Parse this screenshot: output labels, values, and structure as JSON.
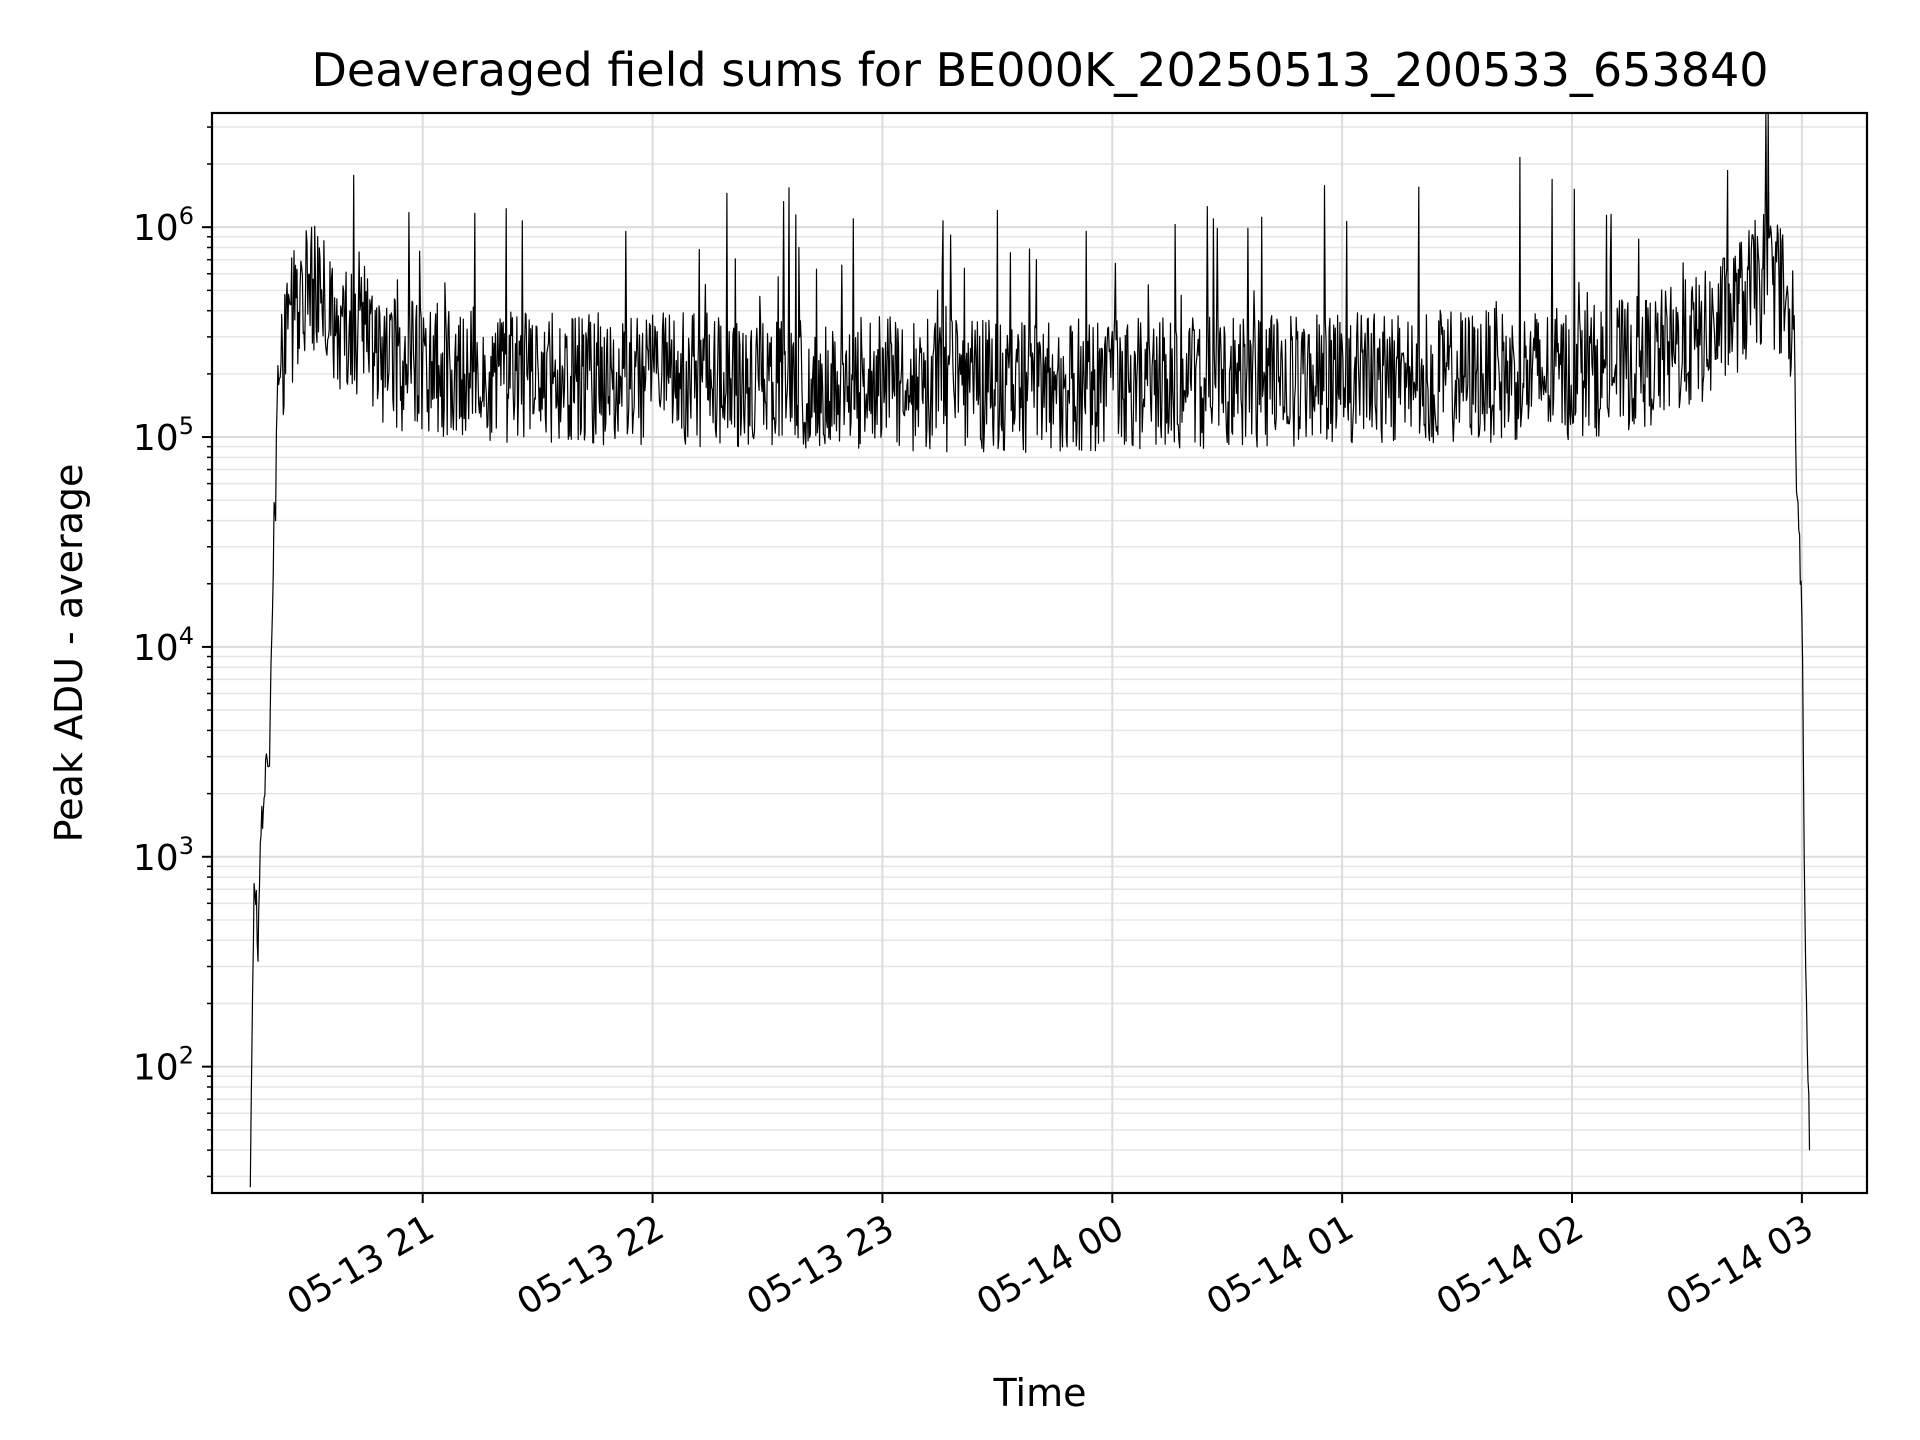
{
  "chart_data": {
    "type": "line",
    "title": "Deaveraged field sums for BE000K_20250513_200533_653840",
    "xlabel": "Time",
    "ylabel": "Peak ADU - average",
    "yscale": "log",
    "ylim": [
      25,
      3500000
    ],
    "xlim": [
      "2025-05-13 20:05",
      "2025-05-14 03:17"
    ],
    "grid": true,
    "line_color": "#000000",
    "x_ticks": [
      {
        "label": "05-13 21",
        "time": "2025-05-13 21:00"
      },
      {
        "label": "05-13 22",
        "time": "2025-05-13 22:00"
      },
      {
        "label": "05-13 23",
        "time": "2025-05-13 23:00"
      },
      {
        "label": "05-14 00",
        "time": "2025-05-14 00:00"
      },
      {
        "label": "05-14 01",
        "time": "2025-05-14 01:00"
      },
      {
        "label": "05-14 02",
        "time": "2025-05-14 02:00"
      },
      {
        "label": "05-14 03",
        "time": "2025-05-14 03:00"
      }
    ],
    "y_ticks": [
      {
        "base": "10",
        "exp": "2",
        "value": 100
      },
      {
        "base": "10",
        "exp": "3",
        "value": 1000
      },
      {
        "base": "10",
        "exp": "4",
        "value": 10000
      },
      {
        "base": "10",
        "exp": "5",
        "value": 100000
      },
      {
        "base": "10",
        "exp": "6",
        "value": 1000000
      }
    ],
    "series": [
      {
        "x": [
          "2025-05-13 20:15",
          "2025-05-13 20:16",
          "2025-05-13 20:17",
          "2025-05-13 20:18",
          "2025-05-13 20:19",
          "2025-05-13 20:20",
          "2025-05-13 20:21",
          "2025-05-13 20:22",
          "2025-05-13 20:24",
          "2025-05-13 20:26",
          "2025-05-13 20:28",
          "2025-05-13 20:30",
          "2025-05-13 20:32",
          "2025-05-13 20:35",
          "2025-05-13 20:40",
          "2025-05-13 20:45",
          "2025-05-13 20:50",
          "2025-05-13 20:55",
          "2025-05-13 21:00",
          "2025-05-13 21:15",
          "2025-05-13 21:30",
          "2025-05-13 22:00",
          "2025-05-13 22:30",
          "2025-05-13 23:00",
          "2025-05-13 23:30",
          "2025-05-14 00:00",
          "2025-05-14 00:30",
          "2025-05-14 01:00",
          "2025-05-14 01:30",
          "2025-05-14 02:00",
          "2025-05-14 02:20",
          "2025-05-14 02:35",
          "2025-05-14 02:45",
          "2025-05-14 02:50",
          "2025-05-14 02:55",
          "2025-05-14 02:58",
          "2025-05-14 03:00",
          "2025-05-14 03:01",
          "2025-05-14 03:02"
        ],
        "y": [
          30,
          800,
          400,
          1500,
          2500,
          3000,
          30000,
          120000,
          250000,
          380000,
          500000,
          560000,
          500000,
          420000,
          320000,
          280000,
          240000,
          220000,
          210000,
          200000,
          190000,
          190000,
          185000,
          180000,
          175000,
          180000,
          185000,
          190000,
          195000,
          200000,
          230000,
          300000,
          450000,
          580000,
          500000,
          200000,
          15000,
          250,
          40
        ]
      }
    ]
  }
}
